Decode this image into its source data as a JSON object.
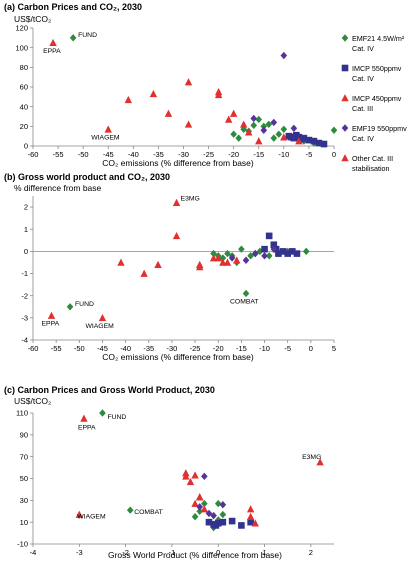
{
  "chart_data": [
    {
      "type": "scatter",
      "title": "(a) Carbon Prices and CO₂, 2030",
      "ylabel": "US$/tCO₂",
      "xlabel": "CO₂ emissions (% difference from base)",
      "xlim": [
        -60,
        0
      ],
      "ylim": [
        0,
        120
      ],
      "xticks": [
        -60,
        -55,
        -50,
        -45,
        -40,
        -35,
        -30,
        -25,
        -20,
        -15,
        -10,
        -5,
        0
      ],
      "yticks": [
        0,
        20,
        40,
        60,
        80,
        100,
        120
      ],
      "grid": false,
      "legend_position": "right",
      "series": [
        {
          "name": "EMF21 4.5W/m² Cat. IV",
          "marker": "diamond",
          "color": "#2e8b3e",
          "points": [
            [
              -52,
              110
            ],
            [
              -20,
              12
            ],
            [
              -19,
              8
            ],
            [
              -18,
              17
            ],
            [
              -17,
              15
            ],
            [
              -16,
              21
            ],
            [
              -15,
              27
            ],
            [
              -14,
              20
            ],
            [
              -13,
              22
            ],
            [
              -12,
              8
            ],
            [
              -11,
              12
            ],
            [
              -10,
              17
            ],
            [
              -8,
              10
            ],
            [
              -6,
              5
            ],
            [
              -4,
              3
            ],
            [
              -2,
              2
            ],
            [
              0,
              16
            ]
          ]
        },
        {
          "name": "IMCP 550ppmv Cat. IV",
          "marker": "square",
          "color": "#33338f",
          "points": [
            [
              -9,
              10
            ],
            [
              -8.5,
              9
            ],
            [
              -8,
              8
            ],
            [
              -7.5,
              11
            ],
            [
              -7,
              9
            ],
            [
              -6.5,
              7
            ],
            [
              -6,
              8
            ],
            [
              -5,
              6
            ],
            [
              -4,
              5
            ],
            [
              -3,
              3
            ],
            [
              -2,
              2
            ]
          ]
        },
        {
          "name": "IMCP 450ppmv Cat. III",
          "marker": "triangle",
          "color": "#e03030",
          "points": [
            [
              -29,
              65
            ],
            [
              -23,
              52
            ],
            [
              -21,
              27
            ],
            [
              -18,
              22
            ],
            [
              -15,
              5
            ]
          ]
        },
        {
          "name": "EMF19 550ppmv Cat. IV",
          "marker": "diamond",
          "color": "#553399",
          "points": [
            [
              -16,
              28
            ],
            [
              -14,
              16
            ],
            [
              -12,
              24
            ],
            [
              -10,
              92
            ],
            [
              -8,
              18
            ]
          ]
        },
        {
          "name": "Other Cat. III stabilisation",
          "marker": "triangle",
          "color": "#e03030",
          "points": [
            [
              -56,
              105
            ],
            [
              -45,
              17
            ],
            [
              -41,
              47
            ],
            [
              -36,
              53
            ],
            [
              -33,
              33
            ],
            [
              -29,
              22
            ],
            [
              -23,
              55
            ],
            [
              -20,
              33
            ],
            [
              -17,
              14
            ],
            [
              -10,
              9
            ],
            [
              -7,
              5
            ]
          ]
        }
      ],
      "annotations": [
        {
          "text": "FUND",
          "x": -52,
          "y": 110
        },
        {
          "text": "EPPA",
          "x": -56,
          "y": 105
        },
        {
          "text": "WIAGEM",
          "x": -45,
          "y": 17
        }
      ]
    },
    {
      "type": "scatter",
      "title": "(b) Gross world product and CO₂, 2030",
      "ylabel": "% difference from base",
      "xlabel": "CO₂ emissions (% difference from base)",
      "xlim": [
        -60,
        5
      ],
      "ylim": [
        -4,
        2.5
      ],
      "xticks": [
        -60,
        -55,
        -50,
        -45,
        -40,
        -35,
        -30,
        -25,
        -20,
        -15,
        -10,
        -5,
        0,
        5
      ],
      "yticks": [
        -4,
        -3,
        -2,
        -1,
        0,
        1,
        2
      ],
      "grid": false,
      "series": [
        {
          "name": "EMF21 4.5W/m² Cat. IV",
          "marker": "diamond",
          "color": "#2e8b3e",
          "points": [
            [
              -52,
              -2.5
            ],
            [
              -21,
              -0.1
            ],
            [
              -20,
              -0.2
            ],
            [
              -19,
              -0.3
            ],
            [
              -18,
              -0.1
            ],
            [
              -17,
              -0.2
            ],
            [
              -16,
              -0.5
            ],
            [
              -15,
              0.1
            ],
            [
              -14,
              -1.9
            ],
            [
              -13,
              -0.2
            ],
            [
              -12,
              -0.1
            ],
            [
              -11,
              0
            ],
            [
              -9,
              -0.2
            ],
            [
              -7,
              -0.1
            ],
            [
              -5,
              0
            ],
            [
              -1,
              0
            ]
          ]
        },
        {
          "name": "IMCP 550ppmv Cat. IV",
          "marker": "square",
          "color": "#33338f",
          "points": [
            [
              -10,
              0.1
            ],
            [
              -9,
              0.7
            ],
            [
              -8,
              0.3
            ],
            [
              -7.5,
              0.1
            ],
            [
              -7,
              -0.1
            ],
            [
              -6,
              0
            ],
            [
              -5,
              -0.1
            ],
            [
              -4,
              0
            ],
            [
              -3,
              -0.1
            ]
          ]
        },
        {
          "name": "IMCP 450ppmv Cat. III",
          "marker": "triangle",
          "color": "#e03030",
          "points": [
            [
              -29,
              2.2
            ],
            [
              -24,
              -0.7
            ],
            [
              -20,
              -0.3
            ],
            [
              -18,
              -0.5
            ],
            [
              -16,
              -0.4
            ]
          ]
        },
        {
          "name": "EMF19 550ppmv Cat. IV",
          "marker": "diamond",
          "color": "#553399",
          "points": [
            [
              -17,
              -0.3
            ],
            [
              -14,
              -0.4
            ],
            [
              -12,
              -0.1
            ],
            [
              -10,
              -0.2
            ],
            [
              -8,
              0.1
            ]
          ]
        },
        {
          "name": "Other Cat. III stabilisation",
          "marker": "triangle",
          "color": "#e03030",
          "points": [
            [
              -56,
              -2.9
            ],
            [
              -45,
              -3
            ],
            [
              -41,
              -0.5
            ],
            [
              -36,
              -1
            ],
            [
              -33,
              -0.6
            ],
            [
              -29,
              0.7
            ],
            [
              -24,
              -0.6
            ],
            [
              -21,
              -0.3
            ],
            [
              -19,
              -0.5
            ]
          ]
        }
      ],
      "annotations": [
        {
          "text": "E3MG",
          "x": -29,
          "y": 2.2
        },
        {
          "text": "FUND",
          "x": -52,
          "y": -2.5
        },
        {
          "text": "COMBAT",
          "x": -14,
          "y": -1.9
        },
        {
          "text": "EPPA",
          "x": -56,
          "y": -2.9
        },
        {
          "text": "WIAGEM",
          "x": -45,
          "y": -3
        }
      ]
    },
    {
      "type": "scatter",
      "title": "(c) Carbon Prices and Gross World Product, 2030",
      "ylabel": "US$/tCO₂",
      "xlabel": "Gross World Product (% difference from base)",
      "xlim": [
        -4,
        2.5
      ],
      "ylim": [
        -10,
        110
      ],
      "xticks": [
        -4,
        -3,
        -2,
        -1,
        0,
        1,
        2
      ],
      "yticks": [
        -10,
        10,
        30,
        50,
        70,
        90,
        110
      ],
      "grid": false,
      "series": [
        {
          "name": "EMF21 4.5W/m² Cat. IV",
          "marker": "diamond",
          "color": "#2e8b3e",
          "points": [
            [
              -2.5,
              110
            ],
            [
              -1.9,
              21
            ],
            [
              -0.5,
              15
            ],
            [
              -0.4,
              20
            ],
            [
              -0.3,
              27
            ],
            [
              -0.2,
              10
            ],
            [
              -0.1,
              8
            ],
            [
              0,
              27
            ],
            [
              0,
              12
            ],
            [
              0.1,
              17
            ],
            [
              -0.1,
              5
            ]
          ]
        },
        {
          "name": "IMCP 550ppmv Cat. IV",
          "marker": "square",
          "color": "#33338f",
          "points": [
            [
              -0.2,
              10
            ],
            [
              -0.1,
              8
            ],
            [
              0,
              9
            ],
            [
              0.1,
              10
            ],
            [
              -0.05,
              7
            ],
            [
              0.3,
              11
            ],
            [
              0.7,
              10
            ],
            [
              0.5,
              7
            ]
          ]
        },
        {
          "name": "IMCP 450ppmv Cat. III",
          "marker": "triangle",
          "color": "#e03030",
          "points": [
            [
              -0.7,
              52
            ],
            [
              -0.5,
              27
            ],
            [
              -0.4,
              33
            ],
            [
              -0.3,
              22
            ],
            [
              2.2,
              65
            ]
          ]
        },
        {
          "name": "EMF19 550ppmv Cat. IV",
          "marker": "diamond",
          "color": "#553399",
          "points": [
            [
              -0.3,
              52
            ],
            [
              -0.4,
              24
            ],
            [
              -0.2,
              18
            ],
            [
              -0.1,
              16
            ],
            [
              0.1,
              26
            ]
          ]
        },
        {
          "name": "Other Cat. III stabilisation",
          "marker": "triangle",
          "color": "#e03030",
          "points": [
            [
              -2.9,
              105
            ],
            [
              -3,
              17
            ],
            [
              -0.7,
              55
            ],
            [
              -0.6,
              47
            ],
            [
              -0.5,
              53
            ],
            [
              -0.4,
              33
            ],
            [
              0.7,
              22
            ],
            [
              0.7,
              15
            ],
            [
              0.8,
              9
            ]
          ]
        }
      ],
      "annotations": [
        {
          "text": "FUND",
          "x": -2.5,
          "y": 110
        },
        {
          "text": "EPPA",
          "x": -2.9,
          "y": 105
        },
        {
          "text": "E3MG",
          "x": 2.2,
          "y": 65
        },
        {
          "text": "WIAGEM",
          "x": -3,
          "y": 17
        },
        {
          "text": "COMBAT",
          "x": -1.9,
          "y": 21
        }
      ]
    }
  ],
  "legend": {
    "items": [
      {
        "marker": "diamond",
        "color": "#2e8b3e",
        "lines": [
          "EMF21 4.5W/m²",
          "Cat. IV"
        ]
      },
      {
        "marker": "square",
        "color": "#33338f",
        "lines": [
          "IMCP 550ppmv",
          "Cat. IV"
        ]
      },
      {
        "marker": "triangle",
        "color": "#e03030",
        "lines": [
          "IMCP 450ppmv",
          "Cat. III"
        ]
      },
      {
        "marker": "diamond",
        "color": "#553399",
        "lines": [
          "EMF19 550ppmv",
          "Cat. IV"
        ]
      },
      {
        "marker": "triangle",
        "color": "#e03030",
        "lines": [
          "Other Cat. III",
          "stabilisation"
        ]
      }
    ]
  }
}
